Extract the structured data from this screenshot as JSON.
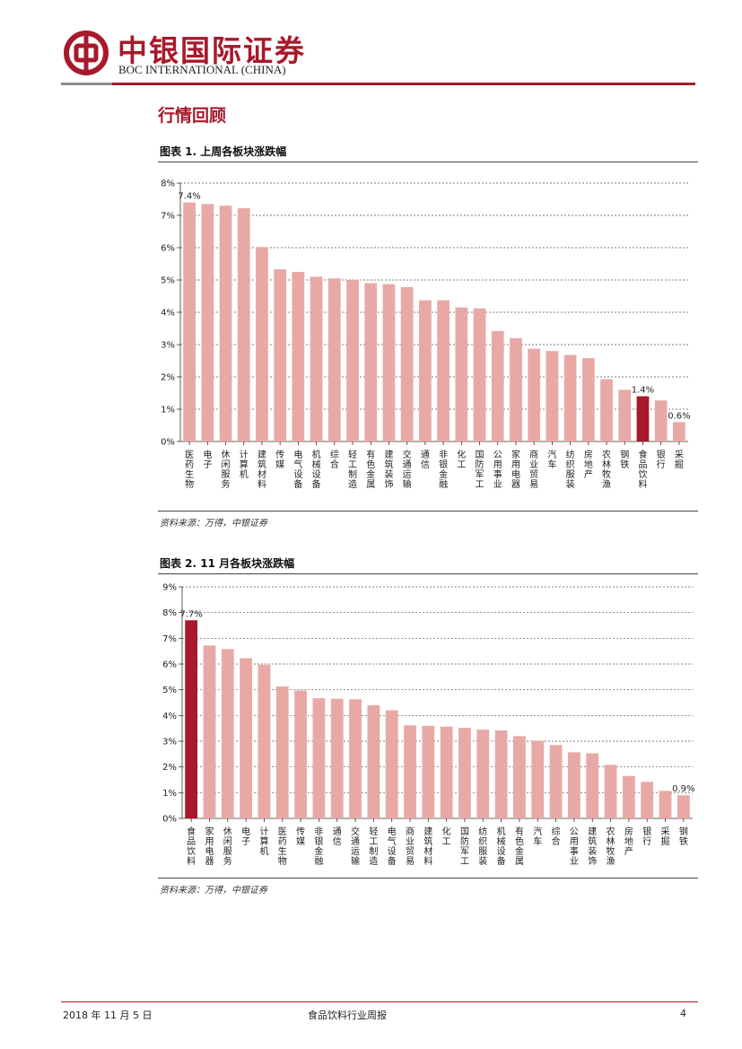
{
  "header": {
    "brand_cn": "中银国际证券",
    "brand_en": "BOC INTERNATIONAL (CHINA)",
    "brand_color": "#a7192b"
  },
  "section_title": "行情回顾",
  "charts": [
    {
      "caption": "图表 1. 上周各板块涨跌幅",
      "source": "资料来源：万得，中银证券"
    },
    {
      "caption": "图表 2. 11 月各板块涨跌幅",
      "source": "资料来源：万得，中银证券"
    }
  ],
  "chart_data": [
    {
      "type": "bar",
      "title": "图表 1. 上周各板块涨跌幅",
      "categories": [
        "医药生物",
        "电子",
        "休闲服务",
        "计算机",
        "建筑材料",
        "传媒",
        "电气设备",
        "机械设备",
        "综合",
        "轻工制造",
        "有色金属",
        "建筑装饰",
        "交通运输",
        "通信",
        "非银金融",
        "化工",
        "国防军工",
        "公用事业",
        "家用电器",
        "商业贸易",
        "汽车",
        "纺织服装",
        "房地产",
        "农林牧渔",
        "钢铁",
        "食品饮料",
        "银行",
        "采掘"
      ],
      "values": [
        7.4,
        7.35,
        7.3,
        7.22,
        6.02,
        5.33,
        5.25,
        5.1,
        5.05,
        5.0,
        4.9,
        4.87,
        4.78,
        4.37,
        4.37,
        4.15,
        4.12,
        3.42,
        3.2,
        2.87,
        2.8,
        2.68,
        2.58,
        1.93,
        1.6,
        1.4,
        1.27,
        0.6
      ],
      "highlight": "食品饮料",
      "labeled_values": [
        {
          "category": "医药生物",
          "label": "7.4%"
        },
        {
          "category": "食品饮料",
          "label": "1.4%"
        },
        {
          "category": "采掘",
          "label": "0.6%"
        }
      ],
      "y_ticks": [
        "0%",
        "1%",
        "2%",
        "3%",
        "4%",
        "5%",
        "6%",
        "7%",
        "8%"
      ],
      "ylim": [
        0,
        8
      ],
      "grid": true,
      "bar_color": "#e8a9a6",
      "highlight_color": "#a7192b"
    },
    {
      "type": "bar",
      "title": "图表 2. 11 月各板块涨跌幅",
      "categories": [
        "食品饮料",
        "家用电器",
        "休闲服务",
        "电子",
        "计算机",
        "医药生物",
        "传媒",
        "非银金融",
        "通信",
        "交通运输",
        "轻工制造",
        "电气设备",
        "商业贸易",
        "建筑材料",
        "化工",
        "国防军工",
        "纺织服装",
        "机械设备",
        "有色金属",
        "汽车",
        "综合",
        "公用事业",
        "建筑装饰",
        "农林牧渔",
        "房地产",
        "银行",
        "采掘",
        "钢铁"
      ],
      "values": [
        7.7,
        6.72,
        6.58,
        6.23,
        5.97,
        5.13,
        4.97,
        4.67,
        4.65,
        4.63,
        4.4,
        4.2,
        3.62,
        3.6,
        3.57,
        3.52,
        3.45,
        3.42,
        3.2,
        3.02,
        2.85,
        2.57,
        2.53,
        2.08,
        1.65,
        1.42,
        1.07,
        0.9
      ],
      "highlight": "食品饮料",
      "labeled_values": [
        {
          "category": "食品饮料",
          "label": "7.7%"
        },
        {
          "category": "钢铁",
          "label": "0.9%"
        }
      ],
      "y_ticks": [
        "0%",
        "1%",
        "2%",
        "3%",
        "4%",
        "5%",
        "6%",
        "7%",
        "8%",
        "9%"
      ],
      "ylim": [
        0,
        9
      ],
      "grid": true,
      "bar_color": "#e8a9a6",
      "highlight_color": "#a7192b"
    }
  ],
  "footer": {
    "date": "2018 年 11 月 5 日",
    "report_title": "食品饮料行业周报",
    "page": "4"
  }
}
